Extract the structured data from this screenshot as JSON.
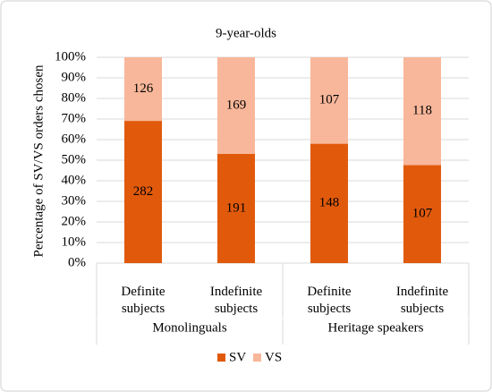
{
  "chart_data": {
    "type": "stacked100-bar",
    "title": "9-year-olds",
    "y_label": "Percentage of SV/VS orders chosen",
    "categories": [
      "Definite subjects",
      "Indefinite subjects",
      "Definite subjects",
      "Indefinite subjects"
    ],
    "groups": [
      "Monolinguals",
      "Heritage speakers"
    ],
    "series": [
      {
        "name": "SV",
        "color": "#e15a0c",
        "values": [
          69.1,
          53.1,
          58.0,
          47.6
        ],
        "counts": [
          282,
          191,
          148,
          107
        ]
      },
      {
        "name": "VS",
        "color": "#f8b79a",
        "values": [
          30.9,
          46.9,
          42.0,
          52.4
        ],
        "counts": [
          126,
          169,
          107,
          118
        ]
      }
    ],
    "ylim": [
      0,
      100
    ],
    "yticks": [
      {
        "value": 0,
        "label": "0%"
      },
      {
        "value": 10,
        "label": "10%"
      },
      {
        "value": 20,
        "label": "20%"
      },
      {
        "value": 30,
        "label": "30%"
      },
      {
        "value": 40,
        "label": "40%"
      },
      {
        "value": 50,
        "label": "50%"
      },
      {
        "value": 60,
        "label": "60%"
      },
      {
        "value": 70,
        "label": "70%"
      },
      {
        "value": 80,
        "label": "80%"
      },
      {
        "value": 90,
        "label": "90%"
      },
      {
        "value": 100,
        "label": "100%"
      }
    ],
    "grid": true,
    "legend": "bottom"
  }
}
